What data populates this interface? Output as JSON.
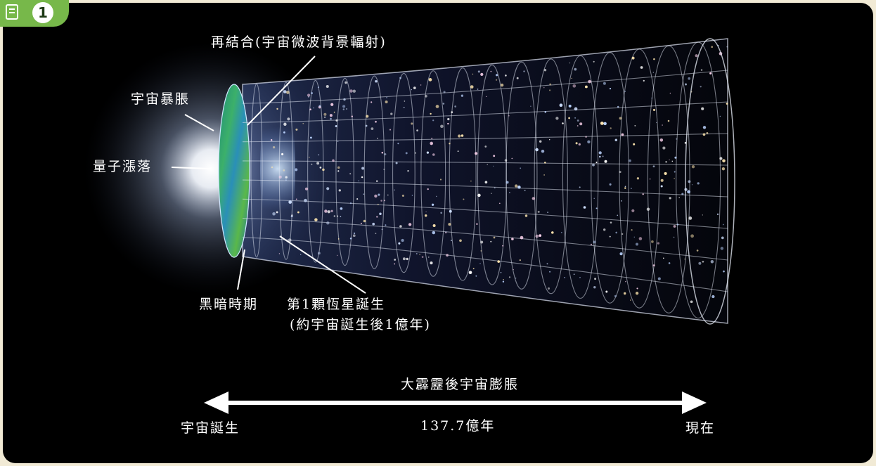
{
  "badge": {
    "icon": "figure-icon",
    "number": "1"
  },
  "labels": {
    "recombination": "再結合(宇宙微波背景輻射)",
    "inflation": "宇宙暴脹",
    "quantum_fluctuation": "量子漲落",
    "dark_ages": "黑暗時期",
    "first_stars_line1": "第1顆恆星誕生",
    "first_stars_line2": "(約宇宙誕生後1億年)"
  },
  "timeline": {
    "title": "大霹靂後宇宙膨脹",
    "start": "宇宙誕生",
    "duration": "137.7億年",
    "end": "現在"
  }
}
